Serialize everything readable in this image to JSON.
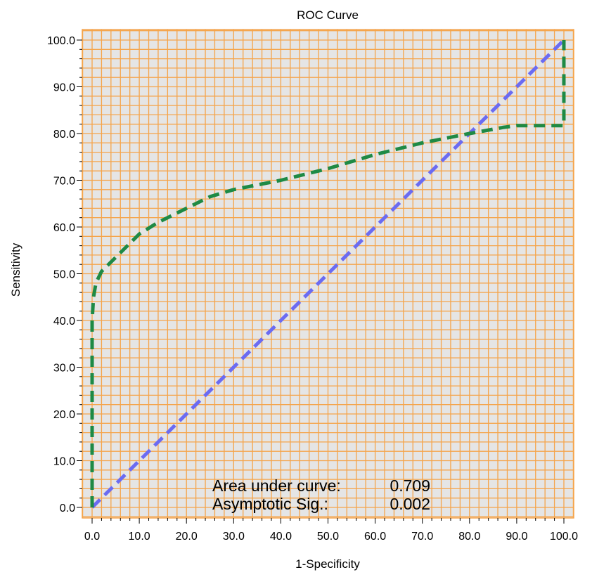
{
  "chart_data": {
    "type": "line",
    "title": "ROC Curve",
    "xlabel": "1-Specificity",
    "ylabel": "Sensitivity",
    "xlim": [
      0,
      100
    ],
    "ylim": [
      0,
      100
    ],
    "x_ticks": [
      "0.0",
      "10.0",
      "20.0",
      "30.0",
      "40.0",
      "50.0",
      "60.0",
      "70.0",
      "80.0",
      "90.0",
      "100.0"
    ],
    "y_ticks": [
      "0.0",
      "10.0",
      "20.0",
      "30.0",
      "40.0",
      "50.0",
      "60.0",
      "70.0",
      "80.0",
      "90.0",
      "100.0"
    ],
    "grid": true,
    "minor_grid_step": 2,
    "colors": {
      "plot_background": "#e5e5e5",
      "grid": "#f5a44a",
      "roc_curve": "#1e8a45",
      "reference_line": "#6b6bf2"
    },
    "series": [
      {
        "role": "roc_curve",
        "x": [
          0,
          0,
          0,
          0.3,
          0.8,
          2,
          4,
          7,
          10,
          14,
          19,
          25,
          30,
          40,
          50,
          60,
          70,
          80,
          87,
          90,
          93,
          97,
          100,
          100
        ],
        "y": [
          0,
          20,
          40,
          45,
          48,
          50.5,
          52.5,
          55.5,
          58.5,
          61,
          63.5,
          66.5,
          68,
          70,
          72.5,
          75.5,
          78,
          80,
          81.3,
          81.7,
          81.7,
          81.7,
          81.7,
          100
        ]
      },
      {
        "role": "reference_line",
        "x": [
          0,
          100
        ],
        "y": [
          0,
          100
        ]
      }
    ],
    "annotations": [
      {
        "label": "Area under curve:",
        "value": "0.709"
      },
      {
        "label": "Asymptotic Sig.:",
        "value": "0.002"
      }
    ]
  }
}
